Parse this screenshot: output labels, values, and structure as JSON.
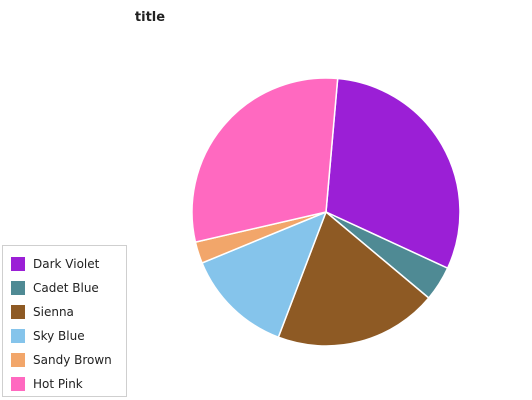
{
  "chart_data": {
    "type": "pie",
    "title": "title",
    "slices": [
      {
        "label": "Dark Violet",
        "value": 30.5,
        "color": "#9b1fd6"
      },
      {
        "label": "Cadet Blue",
        "value": 4.2,
        "color": "#4f8a94"
      },
      {
        "label": "Sienna",
        "value": 19.7,
        "color": "#8e5a24"
      },
      {
        "label": "Sky Blue",
        "value": 13.0,
        "color": "#85c4eb"
      },
      {
        "label": "Sandy Brown",
        "value": 2.6,
        "color": "#f2a66a"
      },
      {
        "label": "Hot Pink",
        "value": 30.0,
        "color": "#ff69c0"
      }
    ],
    "legend_position": "bottom-left",
    "legend": [
      "Dark Violet",
      "Cadet Blue",
      "Sienna",
      "Sky Blue",
      "Sandy Brown",
      "Hot Pink"
    ]
  }
}
